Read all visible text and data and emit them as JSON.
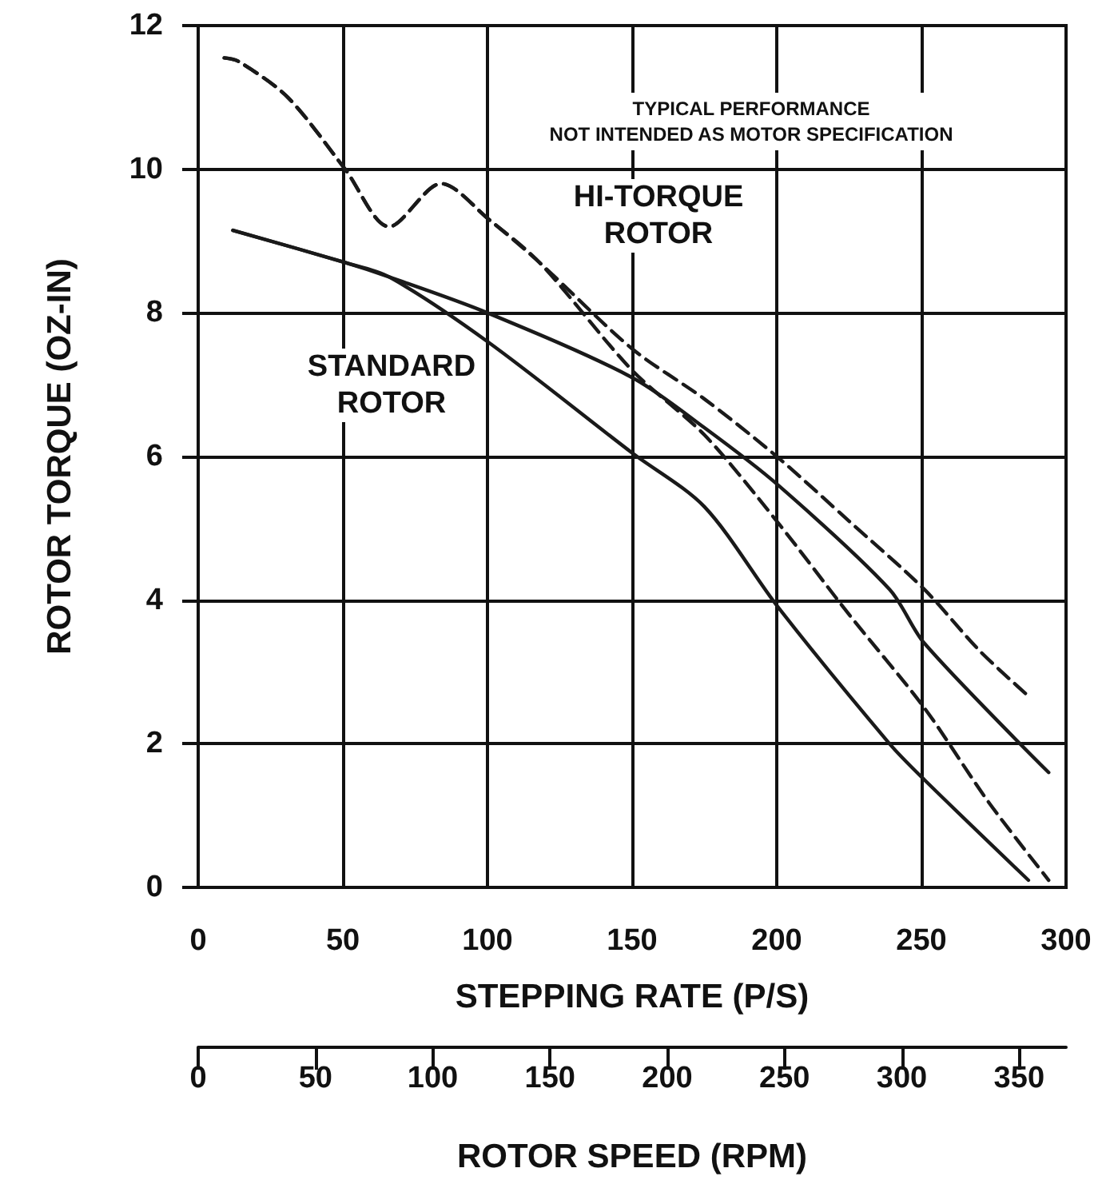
{
  "chart_data": {
    "type": "line",
    "xlabel": "STEPPING RATE (P/S)",
    "ylabel": "ROTOR TORQUE (OZ-IN)",
    "x2label": "ROTOR SPEED (RPM)",
    "xlim": [
      0,
      300
    ],
    "xticks": [
      0,
      50,
      100,
      150,
      200,
      250,
      300
    ],
    "ylim": [
      0,
      12
    ],
    "yticks": [
      0,
      2,
      4,
      6,
      8,
      10,
      12
    ],
    "x2lim": [
      0,
      370
    ],
    "x2ticks": [
      0,
      50,
      100,
      150,
      200,
      250,
      300,
      350
    ],
    "grid": true,
    "marker": "none",
    "series": [
      {
        "color": "#1a1a1a",
        "line_style": "dashed",
        "x": [
          9,
          14,
          31,
          50.8,
          66,
          84,
          100.5,
          118,
          150,
          175,
          200,
          225,
          251,
          270,
          286
        ],
        "values": [
          11.55,
          11.5,
          11.0,
          10.0,
          9.2,
          9.8,
          9.3,
          8.7,
          7.5,
          6.8,
          6.0,
          5.1,
          4.15,
          3.3,
          2.7
        ]
      },
      {
        "color": "#1a1a1a",
        "line_style": "dashed",
        "x": [
          9,
          14,
          31,
          50.8,
          66,
          84,
          100.5,
          118,
          150,
          175,
          200,
          225,
          251,
          273,
          294
        ],
        "values": [
          11.55,
          11.5,
          11.0,
          10.0,
          9.2,
          9.8,
          9.3,
          8.7,
          7.2,
          6.3,
          5.1,
          3.8,
          2.5,
          1.2,
          0.1
        ]
      },
      {
        "color": "#1a1a1a",
        "line_style": "solid",
        "x": [
          12,
          50.8,
          66,
          100,
          150,
          175,
          200.5,
          239,
          251,
          294
        ],
        "values": [
          9.15,
          8.7,
          8.5,
          8.0,
          7.1,
          6.4,
          5.6,
          4.15,
          3.4,
          1.6
        ]
      },
      {
        "color": "#1a1a1a",
        "line_style": "solid",
        "x": [
          12,
          50.8,
          66,
          100,
          150,
          175,
          200.5,
          239,
          251,
          287
        ],
        "values": [
          9.15,
          8.7,
          8.5,
          7.6,
          6.05,
          5.3,
          3.9,
          2.0,
          1.5,
          0.1
        ]
      }
    ],
    "annotations": [
      "TYPICAL PERFORMANCE\nNOT INTENDED AS MOTOR SPECIFICATION",
      "HI-TORQUE\nROTOR",
      "STANDARD\nROTOR"
    ]
  }
}
